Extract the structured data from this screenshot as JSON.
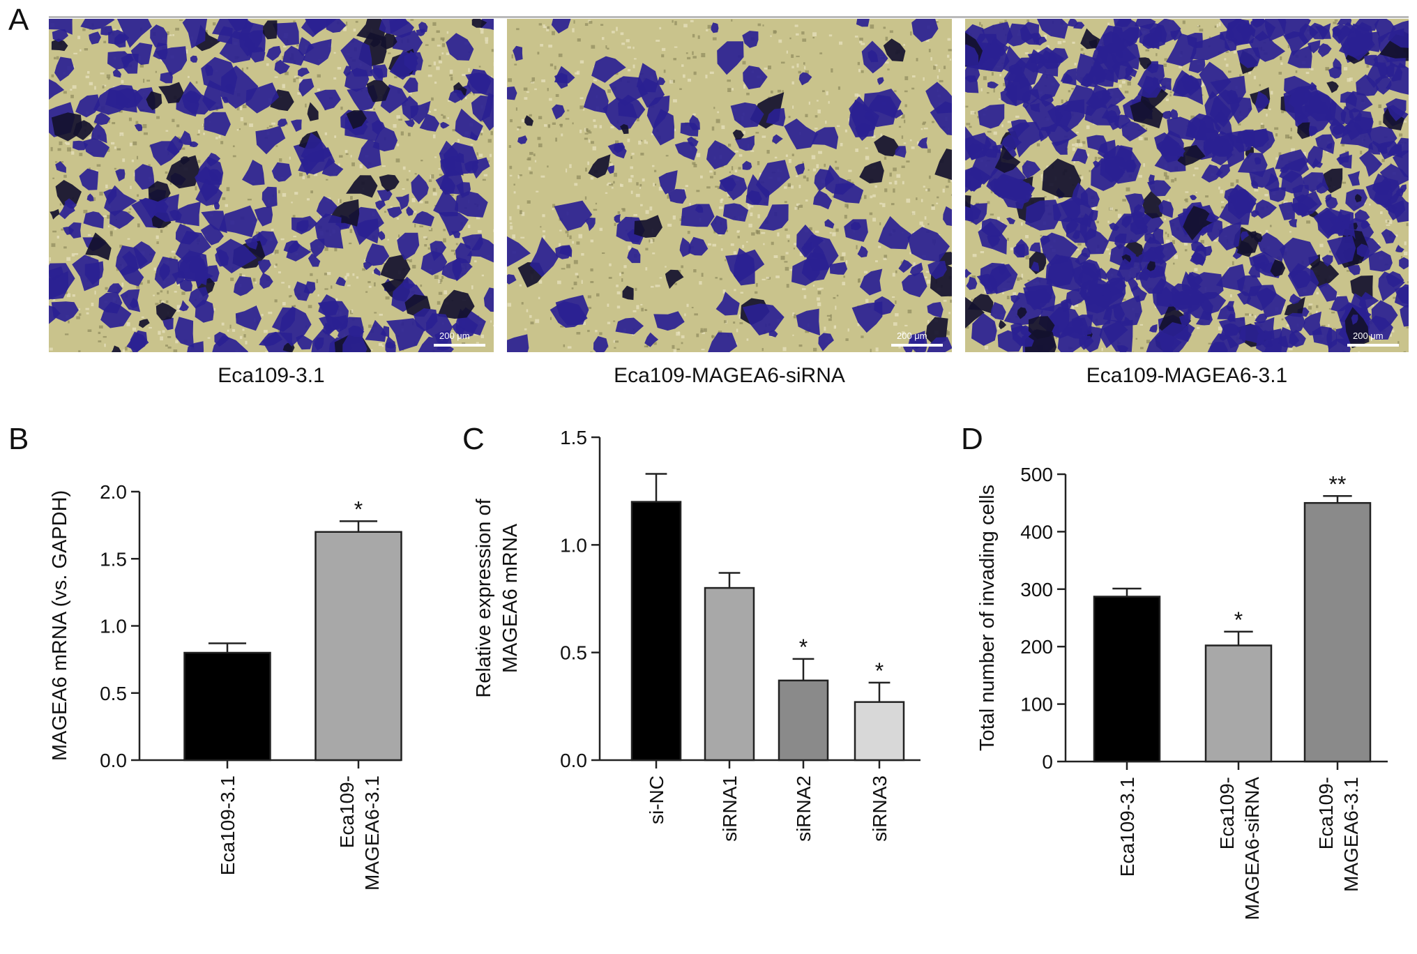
{
  "figure": {
    "panel_letters": [
      "A",
      "B",
      "C",
      "D"
    ]
  },
  "panel_a": {
    "images": [
      {
        "caption": "Eca109-3.1",
        "scale_label": "200 μm",
        "stain_level": 0.45
      },
      {
        "caption": "Eca109-MAGEA6-siRNA",
        "scale_label": "200 μm",
        "stain_level": 0.2
      },
      {
        "caption": "Eca109-MAGEA6-3.1",
        "scale_label": "200 μm",
        "stain_level": 0.8
      }
    ],
    "colors": {
      "stain": "#2a2192",
      "background": "#c9c38c"
    }
  },
  "chart_data": [
    {
      "type": "bar",
      "panel": "B",
      "ylabel": "MAGEA6 mRNA (vs. GAPDH)",
      "xlabel": "",
      "ylim": [
        0,
        2.0
      ],
      "yticks": [
        "0.0",
        "0.5",
        "1.0",
        "1.5",
        "2.0"
      ],
      "categories": [
        "Eca109-3.1",
        "Eca109-\nMAGEA6-3.1"
      ],
      "values": [
        0.8,
        1.7
      ],
      "errors": [
        0.07,
        0.08
      ],
      "significance": [
        "",
        "*"
      ],
      "colors": [
        "#000000",
        "#a8a8a8"
      ]
    },
    {
      "type": "bar",
      "panel": "C",
      "ylabel": "Relative expression of\nMAGEA6 mRNA",
      "xlabel": "",
      "ylim": [
        0,
        1.5
      ],
      "yticks": [
        "0.0",
        "0.5",
        "1.0",
        "1.5"
      ],
      "categories": [
        "si-NC",
        "siRNA1",
        "siRNA2",
        "siRNA3"
      ],
      "values": [
        1.2,
        0.8,
        0.37,
        0.27
      ],
      "errors": [
        0.13,
        0.07,
        0.1,
        0.09
      ],
      "significance": [
        "",
        "",
        "*",
        "*"
      ],
      "colors": [
        "#000000",
        "#a8a8a8",
        "#8a8a8a",
        "#d8d8d8"
      ]
    },
    {
      "type": "bar",
      "panel": "D",
      "ylabel": "Total number of invading cells",
      "xlabel": "",
      "ylim": [
        0,
        500
      ],
      "yticks": [
        "0",
        "100",
        "200",
        "300",
        "400",
        "500"
      ],
      "categories": [
        "Eca109-3.1",
        "Eca109-\nMAGEA6-siRNA",
        "Eca109-\nMAGEA6-3.1"
      ],
      "values": [
        287,
        202,
        450
      ],
      "errors": [
        14,
        24,
        12
      ],
      "significance": [
        "",
        "*",
        "**"
      ],
      "colors": [
        "#000000",
        "#a8a8a8",
        "#8a8a8a"
      ]
    }
  ]
}
